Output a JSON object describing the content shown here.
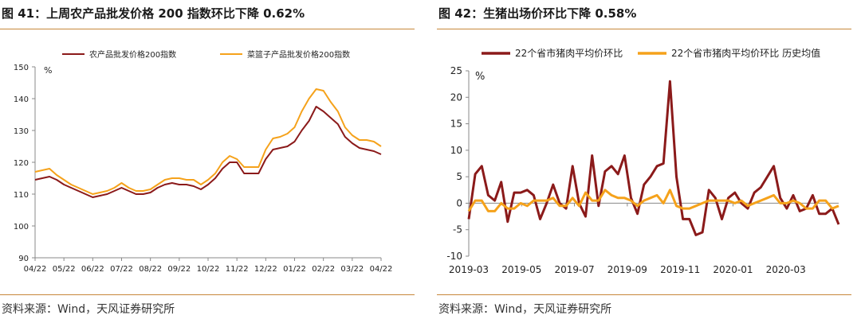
{
  "left_panel": {
    "title": "图 41：上周农产品批发价格 200 指数环比下降 0.62%",
    "source": "资料来源：Wind，天风证券研究所"
  },
  "right_panel": {
    "title": "图 42：生猪出场价环比下降 0.58%",
    "source": "资料来源：Wind，天风证券研究所"
  },
  "colors": {
    "accent": "#c7873a",
    "dark_red": "#8b1a1a",
    "orange": "#f5a21b"
  },
  "chart_data": [
    {
      "type": "line",
      "unit_label": "%",
      "ylim": [
        90,
        150
      ],
      "yticks": [
        90,
        100,
        110,
        120,
        130,
        140,
        150
      ],
      "x_tick_labels": [
        "04/22",
        "05/22",
        "06/22",
        "07/22",
        "08/22",
        "09/22",
        "10/22",
        "11/22",
        "12/22",
        "01/22",
        "02/22",
        "03/22",
        "04/22"
      ],
      "legend_placement": "top",
      "grid": false,
      "series": [
        {
          "name": "农产品批发价格200指数",
          "color": "#8b1a1a",
          "values": [
            114.5,
            115,
            115.5,
            114.5,
            113,
            112,
            111,
            110,
            109,
            109.5,
            110,
            111,
            112,
            111,
            110,
            110,
            110.5,
            112,
            113,
            113.5,
            113,
            113,
            112.5,
            111.5,
            113,
            115,
            118,
            120,
            120,
            116.5,
            116.5,
            116.5,
            121,
            124,
            124.5,
            125,
            126.5,
            130,
            133,
            137.5,
            136,
            134,
            132,
            128,
            126,
            124.5,
            124,
            123.5,
            122.5
          ]
        },
        {
          "name": "菜篮子产品批发价格200指数",
          "color": "#f5a21b",
          "values": [
            117,
            117.5,
            118,
            116,
            114.5,
            113,
            112,
            111,
            110,
            110.5,
            111,
            112,
            113.5,
            112,
            111,
            111,
            111.5,
            113,
            114.5,
            115,
            115,
            114.5,
            114.5,
            113,
            114.5,
            116.5,
            120,
            122,
            121,
            118.5,
            118.5,
            118.5,
            124,
            127.5,
            128,
            129,
            131,
            136,
            140,
            143,
            142.5,
            139,
            136,
            131,
            128.5,
            127,
            127,
            126.5,
            125
          ]
        }
      ]
    },
    {
      "type": "line",
      "unit_label": "%",
      "ylim": [
        -10,
        25
      ],
      "yticks": [
        -10,
        -5,
        0,
        5,
        10,
        15,
        20,
        25
      ],
      "x_tick_labels": [
        "2019-03",
        "2019-05",
        "2019-07",
        "2019-09",
        "2019-11",
        "2020-01",
        "2020-03"
      ],
      "legend_placement": "top",
      "grid": false,
      "series": [
        {
          "name": "22个省市猪肉平均价环比",
          "color": "#8b1a1a",
          "values": [
            -3,
            5.5,
            7,
            1.5,
            0.5,
            4,
            -3.5,
            2,
            2,
            2.5,
            1.5,
            -3,
            0,
            3.5,
            0,
            -1,
            7,
            0,
            -2.5,
            9,
            -0.5,
            6,
            7,
            5.5,
            9,
            1,
            -2,
            3.5,
            5,
            7,
            7.5,
            23,
            5,
            -3,
            -3,
            -6,
            -5.5,
            2.5,
            1,
            -3,
            1,
            2,
            0,
            -1,
            2,
            3,
            5,
            7,
            1,
            -1,
            1.5,
            -1.5,
            -1,
            1.5,
            -2,
            -2,
            -1,
            -4
          ]
        },
        {
          "name": "22个省市猪肉平均价环比 历史均值",
          "color": "#f5a21b",
          "values": [
            -1.5,
            0.5,
            0.5,
            -1.5,
            -1.5,
            0,
            -1,
            -1,
            0,
            -0.5,
            0.5,
            0.5,
            0.5,
            1,
            -0.5,
            -0.5,
            1,
            -0.5,
            2,
            0.5,
            0.5,
            2.5,
            1.5,
            1,
            1,
            0.5,
            -0.5,
            0.5,
            1,
            1.5,
            0,
            2.5,
            -0.5,
            -1,
            -1,
            -0.5,
            0,
            0.5,
            0.5,
            0.5,
            0.5,
            0,
            0.5,
            -0.5,
            0,
            0.5,
            1,
            1.5,
            0,
            0,
            0.5,
            0,
            -1,
            -1,
            0.5,
            0.5,
            -1,
            -0.5
          ]
        }
      ]
    }
  ]
}
